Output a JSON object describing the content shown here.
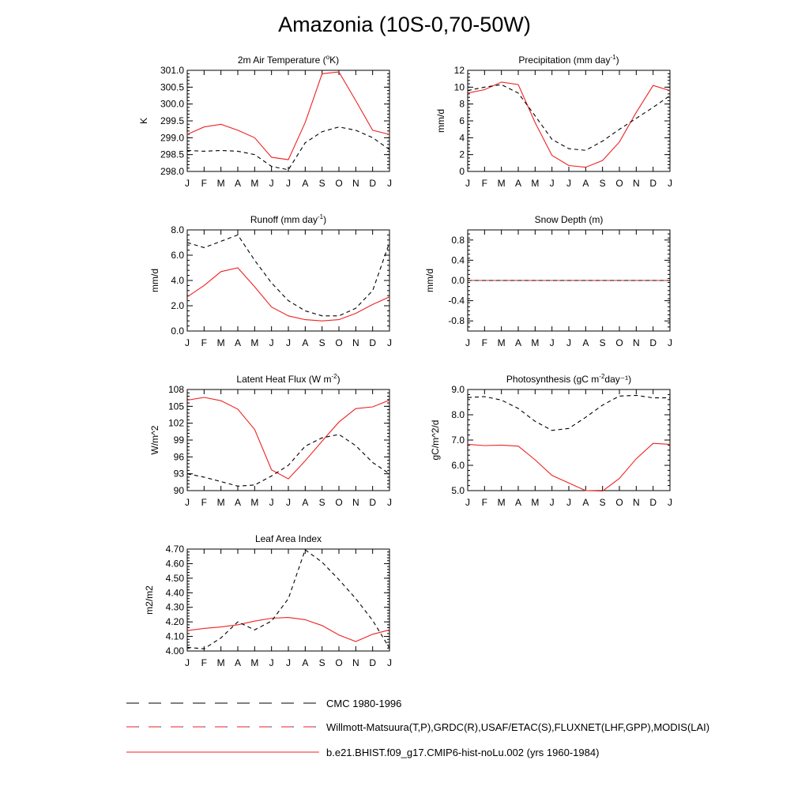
{
  "figure": {
    "title": "Amazonia (10S-0,70-50W)",
    "colors": {
      "model": "#ee2222",
      "obs": "#000000",
      "axis": "#000000"
    }
  },
  "legend": [
    {
      "label": "CMC 1980-1996",
      "style": "dashed",
      "color": "#000000"
    },
    {
      "label": "Willmott-Matsuura(T,P),GRDC(R),USAF/ETAC(S),FLUXNET(LHF,GPP),MODIS(LAI)",
      "style": "dashed",
      "color": "#000000"
    },
    {
      "label": "b.e21.BHIST.f09_g17.CMIP6-hist-noLu.002 (yrs 1960-1984)",
      "style": "solid",
      "color": "#ee2222"
    }
  ],
  "chart_data": [
    {
      "type": "line",
      "title": "2m Air Temperature (°K)",
      "ylabel": "K",
      "categories": [
        "J",
        "F",
        "M",
        "A",
        "M",
        "J",
        "J",
        "A",
        "S",
        "O",
        "N",
        "D",
        "J"
      ],
      "ylim": [
        298.0,
        301.0
      ],
      "yticks": [
        298.0,
        298.5,
        299.0,
        299.5,
        300.0,
        300.5,
        301.0
      ],
      "ytick_labels": [
        "298.0",
        "298.5",
        "299.0",
        "299.5",
        "300.0",
        "300.5",
        "301.0"
      ],
      "series": [
        {
          "style": "solid",
          "color": "#ee2222",
          "values": [
            299.1,
            299.32,
            299.4,
            299.22,
            299.0,
            298.42,
            298.35,
            299.45,
            300.9,
            300.95,
            300.1,
            299.22,
            299.1
          ]
        },
        {
          "style": "dashed",
          "color": "#000000",
          "values": [
            298.62,
            298.6,
            298.62,
            298.6,
            298.5,
            298.15,
            298.05,
            298.85,
            299.18,
            299.32,
            299.22,
            299.0,
            298.65
          ]
        }
      ]
    },
    {
      "type": "line",
      "title": "Precipitation (mm day⁻¹)",
      "ylabel": "mm/d",
      "categories": [
        "J",
        "F",
        "M",
        "A",
        "M",
        "J",
        "J",
        "A",
        "S",
        "O",
        "N",
        "D",
        "J"
      ],
      "ylim": [
        0,
        12
      ],
      "yticks": [
        0,
        2,
        4,
        6,
        8,
        10,
        12
      ],
      "ytick_labels": [
        "0",
        "2",
        "4",
        "6",
        "8",
        "10",
        "12"
      ],
      "series": [
        {
          "style": "solid",
          "color": "#ee2222",
          "values": [
            9.3,
            9.7,
            10.6,
            10.3,
            5.8,
            1.9,
            0.7,
            0.5,
            1.3,
            3.5,
            7.0,
            10.2,
            9.6
          ]
        },
        {
          "style": "dashed",
          "color": "#000000",
          "values": [
            9.6,
            10.0,
            10.3,
            9.3,
            6.6,
            3.8,
            2.7,
            2.5,
            3.6,
            5.0,
            6.3,
            7.6,
            9.0
          ]
        }
      ]
    },
    {
      "type": "line",
      "title": "Runoff (mm day⁻¹)",
      "ylabel": "mm/d",
      "categories": [
        "J",
        "F",
        "M",
        "A",
        "M",
        "J",
        "J",
        "A",
        "S",
        "O",
        "N",
        "D",
        "J"
      ],
      "ylim": [
        0.0,
        8.0
      ],
      "yticks": [
        0.0,
        2.0,
        4.0,
        6.0,
        8.0
      ],
      "ytick_labels": [
        "0.0",
        "2.0",
        "4.0",
        "6.0",
        "8.0"
      ],
      "series": [
        {
          "style": "solid",
          "color": "#ee2222",
          "values": [
            2.7,
            3.6,
            4.7,
            5.0,
            3.5,
            1.9,
            1.2,
            0.9,
            0.8,
            0.9,
            1.4,
            2.1,
            2.7
          ]
        },
        {
          "style": "dashed",
          "color": "#000000",
          "values": [
            7.0,
            6.6,
            7.1,
            7.6,
            5.6,
            3.8,
            2.4,
            1.6,
            1.2,
            1.2,
            1.8,
            3.2,
            7.0
          ]
        }
      ]
    },
    {
      "type": "line",
      "title": "Snow Depth (m)",
      "ylabel": "mm/d",
      "categories": [
        "J",
        "F",
        "M",
        "A",
        "M",
        "J",
        "J",
        "A",
        "S",
        "O",
        "N",
        "D",
        "J"
      ],
      "ylim": [
        -1.0,
        1.0
      ],
      "yticks": [
        -0.8,
        -0.4,
        0.0,
        0.4,
        0.8
      ],
      "ytick_labels": [
        "-0.8",
        "-0.4",
        "0.0",
        "0.4",
        "0.8"
      ],
      "series": [
        {
          "style": "solid",
          "color": "#ee2222",
          "values": [
            0,
            0,
            0,
            0,
            0,
            0,
            0,
            0,
            0,
            0,
            0,
            0,
            0
          ]
        },
        {
          "style": "dashed",
          "color": "#000000",
          "values": [
            0,
            0,
            0,
            0,
            0,
            0,
            0,
            0,
            0,
            0,
            0,
            0,
            0
          ]
        }
      ]
    },
    {
      "type": "line",
      "title": "Latent Heat Flux (W m⁻²)",
      "ylabel": "W/m^2",
      "categories": [
        "J",
        "F",
        "M",
        "A",
        "M",
        "J",
        "J",
        "A",
        "S",
        "O",
        "N",
        "D",
        "J"
      ],
      "ylim": [
        90,
        108
      ],
      "yticks": [
        90,
        93,
        96,
        99,
        102,
        105,
        108
      ],
      "ytick_labels": [
        "90",
        "93",
        "96",
        "99",
        "102",
        "105",
        "108"
      ],
      "series": [
        {
          "style": "solid",
          "color": "#ee2222",
          "values": [
            106.1,
            106.6,
            106.0,
            104.5,
            100.9,
            93.7,
            92.1,
            95.3,
            98.8,
            102.2,
            104.6,
            104.9,
            106.1
          ]
        },
        {
          "style": "dashed",
          "color": "#000000",
          "values": [
            93.0,
            92.4,
            91.6,
            90.8,
            91.0,
            92.6,
            94.5,
            97.9,
            99.4,
            100.0,
            98.0,
            95.0,
            93.0
          ]
        }
      ]
    },
    {
      "type": "line",
      "title": "Photosynthesis (gC m⁻²day⁻¹)",
      "ylabel": "gC/m^2/d",
      "categories": [
        "J",
        "F",
        "M",
        "A",
        "M",
        "J",
        "J",
        "A",
        "S",
        "O",
        "N",
        "D",
        "J"
      ],
      "ylim": [
        5.0,
        9.0
      ],
      "yticks": [
        5.0,
        6.0,
        7.0,
        8.0,
        9.0
      ],
      "ytick_labels": [
        "5.0",
        "6.0",
        "7.0",
        "8.0",
        "9.0"
      ],
      "series": [
        {
          "style": "solid",
          "color": "#ee2222",
          "values": [
            6.83,
            6.78,
            6.8,
            6.76,
            6.22,
            5.6,
            5.3,
            5.0,
            4.98,
            5.48,
            6.26,
            6.87,
            6.83
          ]
        },
        {
          "style": "dashed",
          "color": "#000000",
          "values": [
            8.68,
            8.72,
            8.58,
            8.25,
            7.74,
            7.38,
            7.46,
            7.9,
            8.38,
            8.74,
            8.77,
            8.67,
            8.67
          ]
        }
      ]
    },
    {
      "type": "line",
      "title": "Leaf Area Index",
      "ylabel": "m2/m2",
      "categories": [
        "J",
        "F",
        "M",
        "A",
        "M",
        "J",
        "J",
        "A",
        "S",
        "O",
        "N",
        "D",
        "J"
      ],
      "ylim": [
        4.0,
        4.7
      ],
      "yticks": [
        4.0,
        4.1,
        4.2,
        4.3,
        4.4,
        4.5,
        4.6,
        4.7
      ],
      "ytick_labels": [
        "4.00",
        "4.10",
        "4.20",
        "4.30",
        "4.40",
        "4.50",
        "4.60",
        "4.70"
      ],
      "series": [
        {
          "style": "solid",
          "color": "#ee2222",
          "values": [
            4.14,
            4.155,
            4.165,
            4.18,
            4.205,
            4.225,
            4.23,
            4.215,
            4.175,
            4.11,
            4.065,
            4.115,
            4.145
          ]
        },
        {
          "style": "dashed",
          "color": "#000000",
          "values": [
            4.025,
            4.015,
            4.09,
            4.2,
            4.145,
            4.205,
            4.36,
            4.695,
            4.61,
            4.49,
            4.36,
            4.21,
            4.02
          ]
        }
      ]
    }
  ]
}
